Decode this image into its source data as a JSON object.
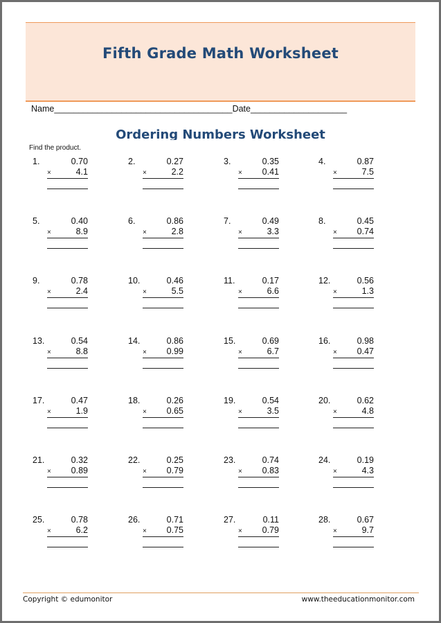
{
  "header": {
    "title": "Fifth Grade Math Worksheet",
    "accent_color": "#234a78",
    "banner_color": "#fce6d8"
  },
  "fields": {
    "name_label": "Name",
    "name_blank": "_____________________________________",
    "date_label": "Date",
    "date_blank": "____________________"
  },
  "subtitle": "Ordering Numbers Worksheet",
  "instructions": "Find the product.",
  "operator": "×",
  "problems": [
    {
      "n": "1.",
      "a": "0.70",
      "b": "4.1"
    },
    {
      "n": "2.",
      "a": "0.27",
      "b": "2.2"
    },
    {
      "n": "3.",
      "a": "0.35",
      "b": "0.41"
    },
    {
      "n": "4.",
      "a": "0.87",
      "b": "7.5"
    },
    {
      "n": "5.",
      "a": "0.40",
      "b": "8.9"
    },
    {
      "n": "6.",
      "a": "0.86",
      "b": "2.8"
    },
    {
      "n": "7.",
      "a": "0.49",
      "b": "3.3"
    },
    {
      "n": "8.",
      "a": "0.45",
      "b": "0.74"
    },
    {
      "n": "9.",
      "a": "0.78",
      "b": "2.4"
    },
    {
      "n": "10.",
      "a": "0.46",
      "b": "5.5"
    },
    {
      "n": "11.",
      "a": "0.17",
      "b": "6.6"
    },
    {
      "n": "12.",
      "a": "0.56",
      "b": "1.3"
    },
    {
      "n": "13.",
      "a": "0.54",
      "b": "8.8"
    },
    {
      "n": "14.",
      "a": "0.86",
      "b": "0.99"
    },
    {
      "n": "15.",
      "a": "0.69",
      "b": "6.7"
    },
    {
      "n": "16.",
      "a": "0.98",
      "b": "0.47"
    },
    {
      "n": "17.",
      "a": "0.47",
      "b": "1.9"
    },
    {
      "n": "18.",
      "a": "0.26",
      "b": "0.65"
    },
    {
      "n": "19.",
      "a": "0.54",
      "b": "3.5"
    },
    {
      "n": "20.",
      "a": "0.62",
      "b": "4.8"
    },
    {
      "n": "21.",
      "a": "0.32",
      "b": "0.89"
    },
    {
      "n": "22.",
      "a": "0.25",
      "b": "0.79"
    },
    {
      "n": "23.",
      "a": "0.74",
      "b": "0.83"
    },
    {
      "n": "24.",
      "a": "0.19",
      "b": "4.3"
    },
    {
      "n": "25.",
      "a": "0.78",
      "b": "6.2"
    },
    {
      "n": "26.",
      "a": "0.71",
      "b": "0.75"
    },
    {
      "n": "27.",
      "a": "0.11",
      "b": "0.79"
    },
    {
      "n": "28.",
      "a": "0.67",
      "b": "9.7"
    }
  ],
  "footer": {
    "copyright": "Copyright © edumonitor",
    "website": "www.theeducationmonitor.com"
  }
}
